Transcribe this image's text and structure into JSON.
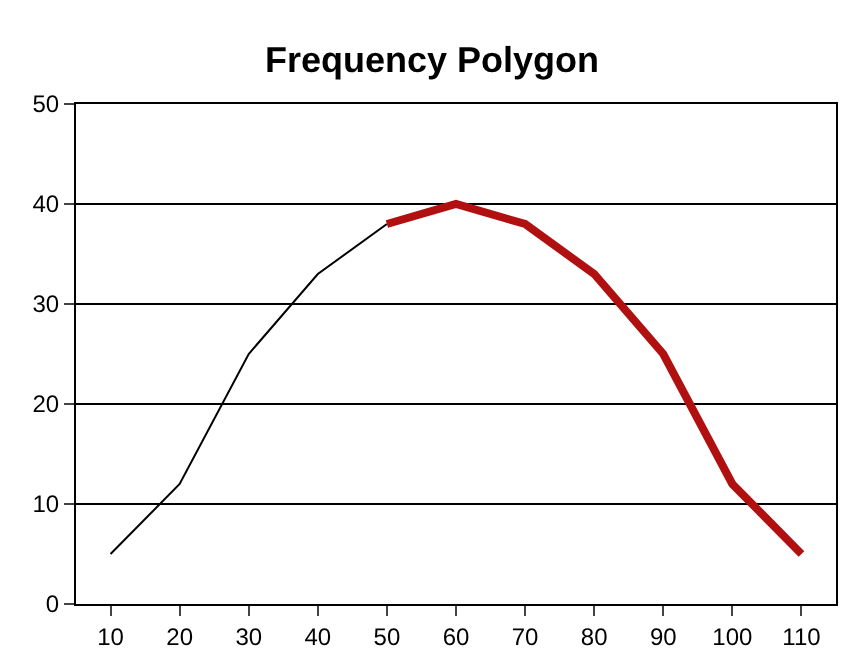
{
  "chart_data": {
    "type": "line",
    "title": "Frequency Polygon",
    "categories": [
      "10",
      "20",
      "30",
      "40",
      "50",
      "60",
      "70",
      "80",
      "90",
      "100",
      "110"
    ],
    "series": [
      {
        "color": "#000000",
        "values": [
          5,
          12,
          25,
          33,
          38,
          null,
          null,
          null,
          null,
          null,
          null
        ]
      },
      {
        "color": "#b01010",
        "values": [
          null,
          null,
          null,
          null,
          38,
          40,
          38,
          33,
          25,
          12,
          5
        ]
      }
    ],
    "ylim": [
      0,
      50
    ],
    "yticks": [
      0,
      10,
      20,
      30,
      40,
      50
    ],
    "grid": "y",
    "marker": "none",
    "line_style": "solid"
  }
}
